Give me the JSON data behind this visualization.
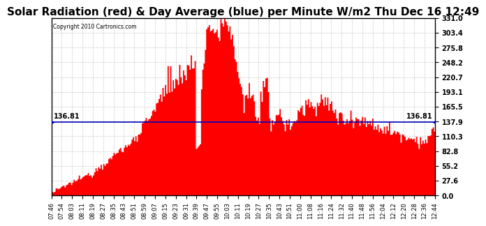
{
  "title": "Solar Radiation (red) & Day Average (blue) per Minute W/m2 Thu Dec 16 12:49",
  "copyright": "Copyright 2010 Cartronics.com",
  "avg_line": 136.81,
  "avg_label": "136.81",
  "ymin": 0.0,
  "ymax": 331.0,
  "yticks": [
    0.0,
    27.6,
    55.2,
    82.8,
    110.3,
    137.9,
    165.5,
    193.1,
    220.7,
    248.2,
    275.8,
    303.4,
    331.0
  ],
  "bar_color": "#FF0000",
  "line_color": "#0000BB",
  "bg_color": "#FFFFFF",
  "grid_color": "#BBBBBB",
  "title_fontsize": 11,
  "xtick_labels": [
    "07:46",
    "07:54",
    "08:03",
    "08:11",
    "08:19",
    "08:27",
    "08:35",
    "08:43",
    "08:51",
    "08:59",
    "09:07",
    "09:15",
    "09:23",
    "09:31",
    "09:39",
    "09:47",
    "09:55",
    "10:03",
    "10:11",
    "10:19",
    "10:27",
    "10:35",
    "10:43",
    "10:51",
    "11:00",
    "11:08",
    "11:16",
    "11:24",
    "11:32",
    "11:40",
    "11:48",
    "11:56",
    "12:04",
    "12:12",
    "12:20",
    "12:28",
    "12:36",
    "12:44"
  ]
}
